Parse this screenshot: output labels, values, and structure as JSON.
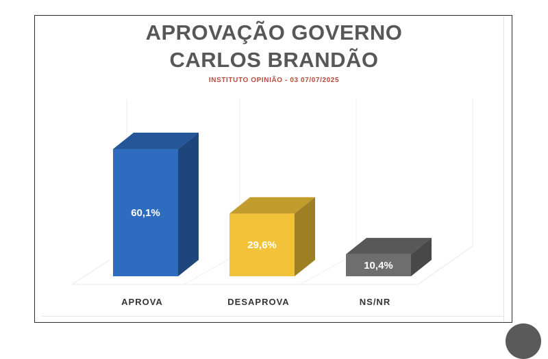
{
  "chart_data": {
    "type": "bar",
    "title_lines": [
      "APROVAÇÃO GOVERNO",
      "CARLOS BRANDÃO"
    ],
    "subtitle": "INSTITUTO OPINIÃO - 03 07/07/2025",
    "categories": [
      "APROVA",
      "DESAPROVA",
      "NS/NR"
    ],
    "values": [
      60.1,
      29.6,
      10.4
    ],
    "value_labels": [
      "60,1%",
      "29,6%",
      "10,4%"
    ],
    "colors": [
      "#2e6cc0",
      "#f2c338",
      "#6e6e6e"
    ],
    "ylim": [
      0,
      60.1
    ],
    "grid": true,
    "style": "3d-column"
  }
}
